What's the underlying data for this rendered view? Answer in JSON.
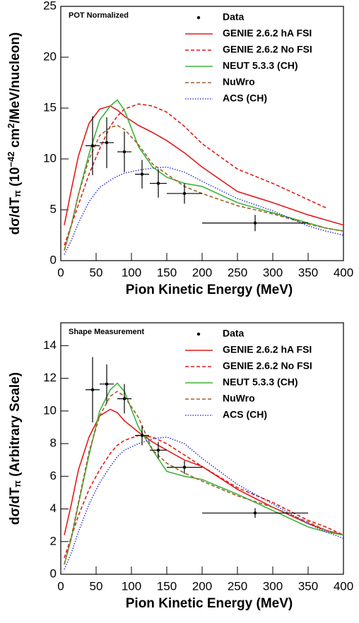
{
  "chart_data": [
    {
      "type": "line",
      "panel_label": "POT Normalized",
      "xlabel": "Pion Kinetic Energy (MeV)",
      "ylabel": [
        "dσ/dT",
        "π",
        "  (10",
        "−42",
        " cm",
        "2",
        "/MeV/nucleon)"
      ],
      "ylabel_styles": [
        "normal",
        "sub",
        "normal",
        "sup",
        "normal",
        "sup",
        "normal"
      ],
      "xlim": [
        0,
        400
      ],
      "xticks": [
        0,
        50,
        100,
        150,
        200,
        250,
        300,
        350,
        400
      ],
      "ylim": [
        0,
        25
      ],
      "yticks": [
        0,
        5,
        10,
        15,
        20,
        25
      ],
      "legend": "upper right",
      "x": [
        5,
        15,
        25,
        40,
        55,
        70,
        80,
        90,
        110,
        130,
        150,
        175,
        200,
        250,
        300,
        350,
        375,
        400
      ],
      "points": {
        "name": "Data",
        "color": "#000000",
        "x": [
          45,
          65,
          90,
          115,
          138,
          175,
          275
        ],
        "y": [
          11.3,
          11.6,
          10.7,
          8.5,
          7.6,
          6.6,
          3.7
        ],
        "xerr": [
          10,
          10,
          10,
          10,
          12,
          25,
          75
        ],
        "yerr": [
          2.9,
          2.5,
          2.0,
          1.4,
          1.4,
          1.0,
          0.8
        ]
      },
      "series": [
        {
          "name": "GENIE 2.6.2 hA FSI",
          "color": "#e41a1c",
          "dash": "solid",
          "values": [
            3.5,
            7,
            10.3,
            13.5,
            14.9,
            15.2,
            14.8,
            14.2,
            13.3,
            12.6,
            11.8,
            10.6,
            9.2,
            6.8,
            5.7,
            4.5,
            4.0,
            3.5
          ]
        },
        {
          "name": "GENIE 2.6.2 No FSI",
          "color": "#e41a1c",
          "dash": "dashed",
          "values": [
            1.5,
            3.5,
            5.5,
            8.5,
            11,
            13.2,
            14.2,
            14.9,
            15.4,
            15.2,
            14.6,
            13.2,
            11.5,
            9,
            7.6,
            6,
            5.2,
            null
          ]
        },
        {
          "name": "NEUT 5.3.3 (CH)",
          "color": "#3cb43c",
          "dash": "solid",
          "values": [
            1,
            3.5,
            6.5,
            10.5,
            13.8,
            15.2,
            15.8,
            14.8,
            11.2,
            9.2,
            8.2,
            7.6,
            7.3,
            5.7,
            4.7,
            3.7,
            3.2,
            2.9
          ]
        },
        {
          "name": "NuWro",
          "color": "#a0602a",
          "dash": "dashed",
          "values": [
            1,
            3.5,
            6.5,
            10,
            12.3,
            13.1,
            13.3,
            12.9,
            11.4,
            9.5,
            8.5,
            7.3,
            6.6,
            5.4,
            4.6,
            3.6,
            3.2,
            2.9
          ]
        },
        {
          "name": "ACS (CH)",
          "color": "#3c3cd2",
          "dash": "dotted",
          "values": [
            0.6,
            2,
            3.7,
            5.8,
            7.2,
            7.9,
            8.3,
            8.6,
            8.9,
            9.1,
            9.2,
            8.7,
            7.8,
            6.1,
            4.9,
            3.4,
            2.9,
            2.5
          ]
        }
      ]
    },
    {
      "type": "line",
      "panel_label": "Shape Measurement",
      "xlabel": "Pion Kinetic Energy (MeV)",
      "ylabel": [
        "dσ/dT",
        "π",
        "  (Arbitrary Scale)"
      ],
      "ylabel_styles": [
        "normal",
        "sub",
        "normal"
      ],
      "xlim": [
        0,
        400
      ],
      "xticks": [
        0,
        50,
        100,
        150,
        200,
        250,
        300,
        350,
        400
      ],
      "ylim": [
        0,
        15.4
      ],
      "yticks": [
        0,
        2,
        4,
        6,
        8,
        10,
        12,
        14
      ],
      "legend": "upper right",
      "x": [
        5,
        15,
        25,
        40,
        55,
        70,
        80,
        90,
        110,
        130,
        150,
        175,
        200,
        250,
        300,
        350,
        375,
        400
      ],
      "points": {
        "name": "Data",
        "color": "#000000",
        "x": [
          45,
          65,
          90,
          115,
          138,
          175,
          275
        ],
        "y": [
          11.3,
          11.65,
          10.75,
          8.5,
          7.6,
          6.55,
          3.75
        ],
        "xerr": [
          10,
          10,
          10,
          10,
          12,
          25,
          75
        ],
        "yerr": [
          2.0,
          1.2,
          0.9,
          0.6,
          0.5,
          0.4,
          0.3
        ]
      },
      "series": [
        {
          "name": "GENIE 2.6.2 hA FSI",
          "color": "#e41a1c",
          "dash": "solid",
          "values": [
            2.4,
            4.3,
            6.4,
            8.4,
            9.7,
            10.1,
            9.9,
            9.4,
            8.7,
            8.1,
            7.6,
            7.0,
            6.6,
            5.2,
            4.1,
            3.1,
            2.7,
            2.4
          ]
        },
        {
          "name": "GENIE 2.6.2 No FSI",
          "color": "#e41a1c",
          "dash": "dashed",
          "values": [
            1,
            2.3,
            3.6,
            5.2,
            6.4,
            7.4,
            7.9,
            8.2,
            8.5,
            8.4,
            8.0,
            7.3,
            6.6,
            5.3,
            4.4,
            3.3,
            2.9,
            2.4
          ]
        },
        {
          "name": "NEUT 5.3.3 (CH)",
          "color": "#3cb43c",
          "dash": "solid",
          "values": [
            0.6,
            2.2,
            4.3,
            7.3,
            10,
            11.3,
            11.7,
            11.2,
            9.0,
            7.6,
            6.3,
            6.0,
            5.8,
            4.9,
            3.9,
            2.9,
            2.6,
            2.4
          ]
        },
        {
          "name": "NuWro",
          "color": "#a0602a",
          "dash": "dashed",
          "values": [
            0.6,
            2.3,
            4.4,
            7.5,
            9.7,
            10.9,
            11.2,
            10.9,
            9.6,
            7.6,
            6.8,
            6.2,
            5.7,
            4.8,
            4.1,
            3.2,
            2.7,
            2.4
          ]
        },
        {
          "name": "ACS (CH)",
          "color": "#3c3cd2",
          "dash": "dotted",
          "values": [
            0.3,
            1.3,
            2.6,
            4.3,
            5.6,
            6.6,
            7.2,
            7.6,
            8.0,
            8.3,
            8.4,
            8.0,
            7.1,
            5.5,
            4.3,
            3.1,
            2.6,
            2.2
          ]
        }
      ]
    }
  ]
}
